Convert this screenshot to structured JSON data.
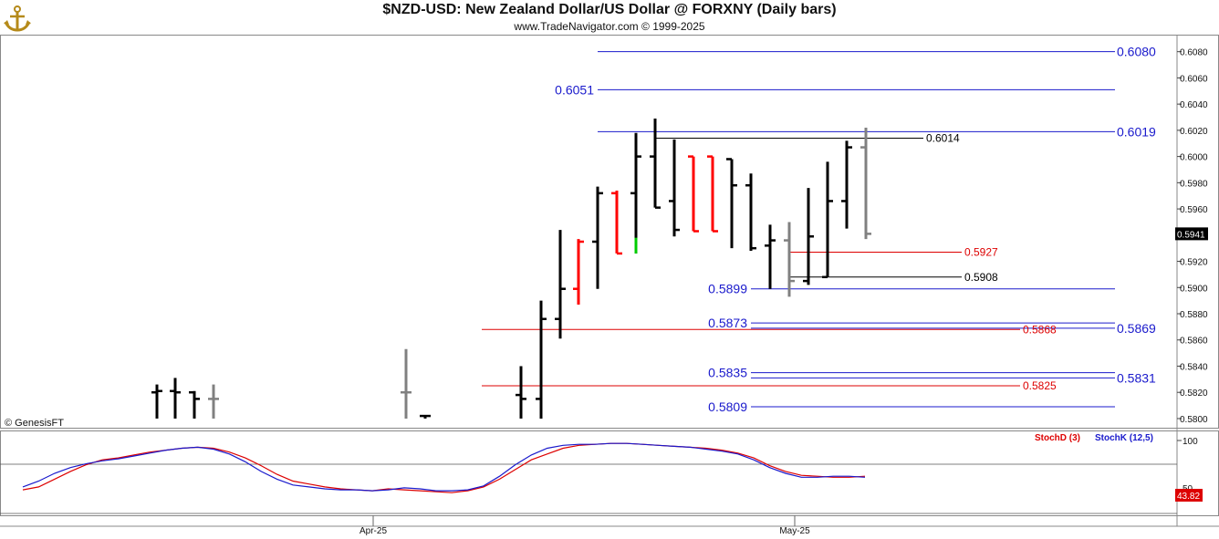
{
  "header": {
    "title": "$NZD-USD:  New Zealand Dollar/US Dollar @ FORXNY  (Daily bars)",
    "subtitle": "www.TradeNavigator.com © 1999-2025",
    "logo_icon": "anchor-logo-icon"
  },
  "watermark": "© GenesisFT",
  "colors": {
    "up_bar": "#000000",
    "down_bar": "#ff0000",
    "neutral_bar": "#808080",
    "green_bar": "#00cc00",
    "blue_level": "#1a1acc",
    "red_level": "#dd0000",
    "stoch_d": "#dd0000",
    "stoch_k": "#1a1acc"
  },
  "chart_data": [
    {
      "type": "ohlc",
      "title": "$NZD-USD:  New Zealand Dollar/US Dollar @ FORXNY  (Daily bars)",
      "ylim": [
        0.5793,
        0.6093
      ],
      "y_ticks": [
        "0.6080",
        "0.6060",
        "0.6040",
        "0.6020",
        "0.6000",
        "0.5980",
        "0.5960",
        "0.5940",
        "0.5920",
        "0.5900",
        "0.5880",
        "0.5860",
        "0.5840",
        "0.5820",
        "0.5800"
      ],
      "x_tick_labels": [
        "Apr-25",
        "May-25"
      ],
      "last_price": "0.5941",
      "bars": [
        {
          "o": 0.582,
          "h": 0.5826,
          "l": 0.58,
          "c": 0.5821,
          "color": "black"
        },
        {
          "o": 0.5821,
          "h": 0.5831,
          "l": 0.58,
          "c": 0.582,
          "color": "black"
        },
        {
          "o": 0.582,
          "h": 0.5821,
          "l": 0.58,
          "c": 0.5815,
          "color": "black"
        },
        {
          "o": 0.5815,
          "h": 0.5826,
          "l": 0.58,
          "c": 0.5815,
          "color": "gray"
        },
        {
          "o": 0.582,
          "h": 0.5853,
          "l": 0.58,
          "c": 0.582,
          "color": "gray"
        },
        {
          "o": 0.5802,
          "h": 0.5802,
          "l": 0.58,
          "c": 0.5802,
          "color": "black"
        },
        {
          "o": 0.5818,
          "h": 0.584,
          "l": 0.58,
          "c": 0.5815,
          "color": "black"
        },
        {
          "o": 0.5815,
          "h": 0.589,
          "l": 0.58,
          "c": 0.5876,
          "color": "black"
        },
        {
          "o": 0.5876,
          "h": 0.5944,
          "l": 0.5861,
          "c": 0.5899,
          "color": "black"
        },
        {
          "o": 0.5899,
          "h": 0.5937,
          "l": 0.5887,
          "c": 0.5935,
          "color": "red"
        },
        {
          "o": 0.5935,
          "h": 0.5977,
          "l": 0.5899,
          "c": 0.5972,
          "color": "black"
        },
        {
          "o": 0.5972,
          "h": 0.5974,
          "l": 0.5926,
          "c": 0.5926,
          "color": "red"
        },
        {
          "o": 0.5972,
          "h": 0.6018,
          "l": 0.5926,
          "c": 0.6,
          "color": "black"
        },
        {
          "o": 0.6,
          "h": 0.6029,
          "l": 0.5961,
          "c": 0.5961,
          "color": "black"
        },
        {
          "o": 0.5966,
          "h": 0.6013,
          "l": 0.5939,
          "c": 0.5944,
          "color": "black"
        },
        {
          "o": 0.6,
          "h": 0.6,
          "l": 0.5943,
          "c": 0.5943,
          "color": "red"
        },
        {
          "o": 0.6,
          "h": 0.6,
          "l": 0.5943,
          "c": 0.5943,
          "color": "red"
        },
        {
          "o": 0.5998,
          "h": 0.5998,
          "l": 0.593,
          "c": 0.5978,
          "color": "black"
        },
        {
          "o": 0.5978,
          "h": 0.5987,
          "l": 0.5928,
          "c": 0.593,
          "color": "black"
        },
        {
          "o": 0.5932,
          "h": 0.5948,
          "l": 0.5899,
          "c": 0.5936,
          "color": "black"
        },
        {
          "o": 0.5936,
          "h": 0.595,
          "l": 0.5893,
          "c": 0.5905,
          "color": "gray"
        },
        {
          "o": 0.5905,
          "h": 0.5976,
          "l": 0.5902,
          "c": 0.5939,
          "color": "black"
        },
        {
          "o": 0.5908,
          "h": 0.5996,
          "l": 0.5908,
          "c": 0.5966,
          "color": "black"
        },
        {
          "o": 0.5966,
          "h": 0.6012,
          "l": 0.5945,
          "c": 0.6007,
          "color": "black"
        },
        {
          "o": 0.6007,
          "h": 0.6022,
          "l": 0.5937,
          "c": 0.5941,
          "color": "gray"
        }
      ],
      "green_bar_segment": {
        "bar_index": 12,
        "from": 0.5938,
        "to": 0.5926
      },
      "levels_blue_left": [
        {
          "label": "0.6051",
          "value": 0.6051
        },
        {
          "label": "0.5899",
          "value": 0.5899
        },
        {
          "label": "0.5873",
          "value": 0.5873
        },
        {
          "label": "0.5835",
          "value": 0.5835
        },
        {
          "label": "0.5809",
          "value": 0.5809
        }
      ],
      "levels_blue_right": [
        {
          "label": "0.6080",
          "value": 0.608
        },
        {
          "label": "0.6019",
          "value": 0.6019
        },
        {
          "label": "0.5869",
          "value": 0.5869
        },
        {
          "label": "0.5831",
          "value": 0.5831
        }
      ],
      "levels_black": [
        {
          "label": "0.6014",
          "value": 0.6014
        },
        {
          "label": "0.5908",
          "value": 0.5908
        }
      ],
      "levels_red": [
        {
          "label": "0.5927",
          "value": 0.5927
        },
        {
          "label": "0.5868",
          "value": 0.5868
        },
        {
          "label": "0.5825",
          "value": 0.5825
        }
      ]
    },
    {
      "type": "line",
      "legend": [
        "StochD (3)",
        "StochK (12,5)"
      ],
      "y_ticks": [
        "100",
        "50"
      ],
      "last_value": "43.82",
      "series": [
        {
          "name": "StochD (3)",
          "values": [
            49,
            52,
            60,
            68,
            75,
            80,
            82,
            85,
            88,
            90,
            92,
            93,
            92,
            88,
            82,
            74,
            65,
            58,
            55,
            52,
            50,
            49,
            48,
            50,
            49,
            48,
            47,
            46,
            48,
            52,
            60,
            70,
            80,
            86,
            92,
            95,
            96,
            97,
            97,
            96,
            95,
            94,
            93,
            92,
            90,
            87,
            82,
            74,
            68,
            64,
            63,
            62,
            62,
            63
          ]
        },
        {
          "name": "StochK (12,5)",
          "values": [
            52,
            58,
            66,
            72,
            76,
            79,
            81,
            84,
            87,
            90,
            92,
            93,
            91,
            86,
            78,
            68,
            60,
            54,
            52,
            50,
            49,
            49,
            48,
            49,
            51,
            50,
            48,
            48,
            49,
            53,
            63,
            75,
            85,
            92,
            95,
            96,
            96,
            97,
            97,
            96,
            95,
            94,
            93,
            91,
            89,
            86,
            80,
            72,
            66,
            62,
            62,
            63,
            63,
            62
          ]
        }
      ]
    }
  ]
}
